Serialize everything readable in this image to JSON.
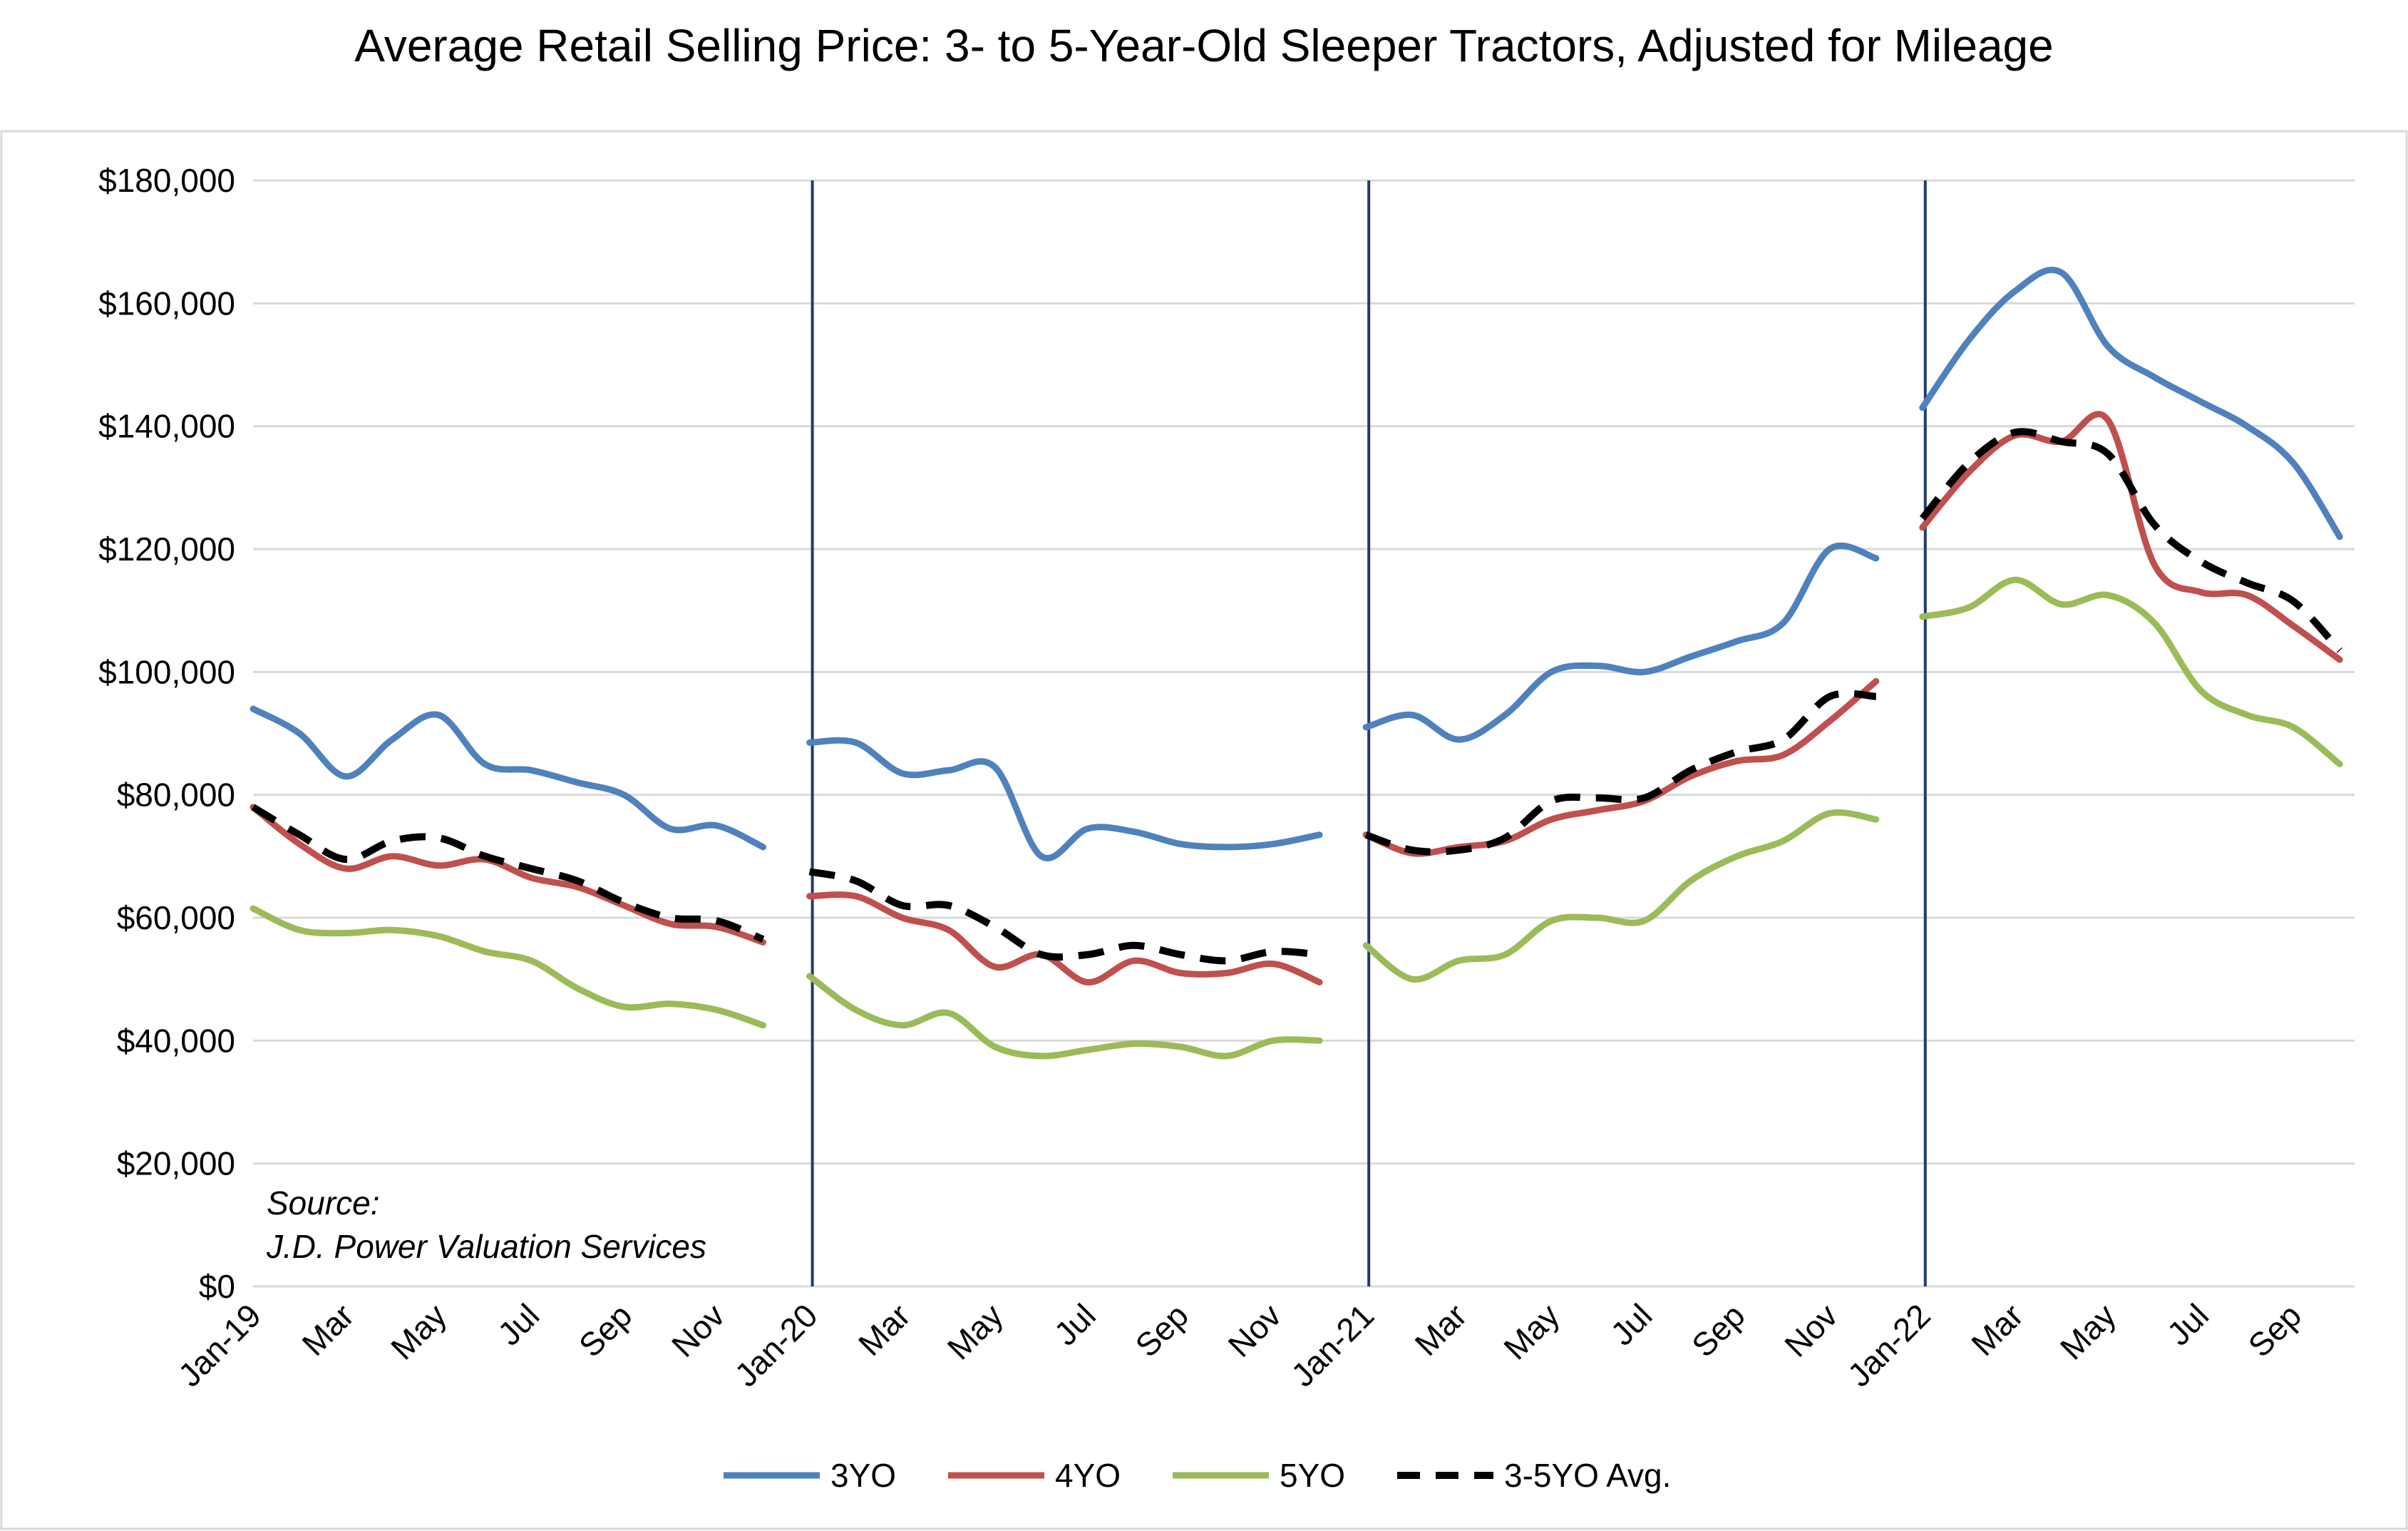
{
  "chart_data": {
    "type": "line",
    "title": "Average Retail Selling Price: 3- to 5-Year-Old Sleeper Tractors, Adjusted for Mileage",
    "ylim": [
      0,
      180000
    ],
    "y_ticks": [
      0,
      20000,
      40000,
      60000,
      80000,
      100000,
      120000,
      140000,
      160000,
      180000
    ],
    "y_tick_labels": [
      "$0",
      "$20,000",
      "$40,000",
      "$60,000",
      "$80,000",
      "$100,000",
      "$120,000",
      "$140,000",
      "$160,000",
      "$180,000"
    ],
    "grid": true,
    "legend_position": "bottom",
    "x_tick_labels": [
      "Jan-19",
      "Mar",
      "May",
      "Jul",
      "Sep",
      "Nov",
      "Jan-20",
      "Mar",
      "May",
      "Jul",
      "Sep",
      "Nov",
      "Jan-21",
      "Mar",
      "May",
      "Jul",
      "Sep",
      "Nov",
      "Jan-22",
      "Mar",
      "May",
      "Jul",
      "Sep"
    ],
    "segments": [
      {
        "start": "Jan-19",
        "months": 12
      },
      {
        "start": "Jan-20",
        "months": 12
      },
      {
        "start": "Jan-21",
        "months": 12
      },
      {
        "start": "Jan-22",
        "months": 10
      }
    ],
    "series": [
      {
        "name": "3YO",
        "color": "#4f81bd",
        "dashed": false,
        "segments": [
          [
            94000,
            90000,
            83000,
            89000,
            93000,
            85000,
            84000,
            82000,
            80000,
            74500,
            75000,
            71500
          ],
          [
            88500,
            88500,
            83500,
            84000,
            84500,
            70000,
            74500,
            74000,
            72000,
            71500,
            72000,
            73500
          ],
          [
            91000,
            93000,
            89000,
            93000,
            100000,
            101000,
            100000,
            102500,
            105000,
            108000,
            120000,
            118500
          ],
          [
            143000,
            154000,
            162000,
            165000,
            153000,
            148000,
            144000,
            140000,
            134000,
            122000
          ]
        ]
      },
      {
        "name": "4YO",
        "color": "#c0504d",
        "dashed": false,
        "segments": [
          [
            78000,
            72000,
            68000,
            70000,
            68500,
            69500,
            66500,
            65000,
            62000,
            59000,
            58500,
            56000
          ],
          [
            63500,
            63500,
            60000,
            58000,
            52000,
            54000,
            49500,
            53000,
            51000,
            51000,
            52500,
            49500
          ],
          [
            73500,
            70500,
            71500,
            72500,
            76000,
            77500,
            79000,
            83000,
            85500,
            86500,
            92000,
            98500
          ],
          [
            123500,
            132500,
            138500,
            137500,
            141000,
            117500,
            113000,
            112500,
            107500,
            102000
          ]
        ]
      },
      {
        "name": "5YO",
        "color": "#9bbb59",
        "dashed": false,
        "segments": [
          [
            61500,
            58000,
            57500,
            58000,
            57000,
            54500,
            53000,
            48500,
            45500,
            46000,
            45000,
            42500
          ],
          [
            50500,
            45000,
            42500,
            44500,
            39000,
            37500,
            38500,
            39500,
            39000,
            37500,
            40000,
            40000
          ],
          [
            55500,
            50000,
            53000,
            54000,
            59500,
            60000,
            59500,
            66000,
            70000,
            72500,
            77000,
            76000
          ],
          [
            109000,
            110500,
            115000,
            111000,
            112500,
            108000,
            97000,
            93000,
            91000,
            85000
          ]
        ]
      },
      {
        "name": "3-5YO Avg.",
        "color": "#000000",
        "dashed": true,
        "segments": [
          [
            78000,
            73500,
            69500,
            72500,
            73000,
            70000,
            68000,
            66000,
            62500,
            60000,
            59500,
            56500
          ],
          [
            67500,
            66000,
            62000,
            62000,
            58500,
            54000,
            54000,
            55500,
            54000,
            53000,
            54500,
            54000
          ],
          [
            73500,
            71000,
            71000,
            73000,
            79000,
            79500,
            79500,
            84000,
            87000,
            89000,
            96000,
            96000
          ],
          [
            125000,
            134000,
            139000,
            137500,
            135500,
            124000,
            118000,
            114500,
            111500,
            103500
          ]
        ]
      }
    ],
    "annotation": [
      "Source:",
      "J.D. Power Valuation Services"
    ]
  }
}
